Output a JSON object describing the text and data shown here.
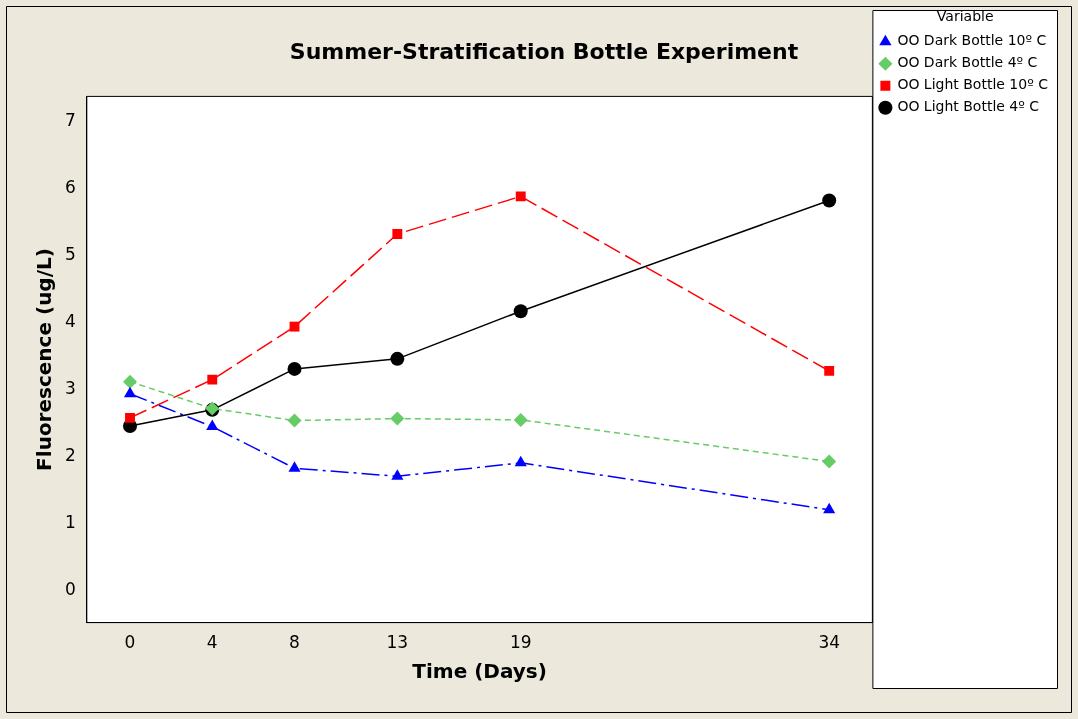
{
  "chart_data": {
    "type": "line",
    "title": "Summer-Stratification Bottle Experiment",
    "xlabel": "Time (Days)",
    "ylabel": "Fluorescence (ug/L)",
    "legend_title": "Variable",
    "legend": "top right",
    "grid": false,
    "x": [
      0,
      4,
      8,
      13,
      19,
      34
    ],
    "xlim": [
      -2.1,
      36.1
    ],
    "xticks": [
      0,
      4,
      8,
      13,
      19,
      34
    ],
    "ylim": [
      -0.47,
      7.37
    ],
    "yticks": [
      0,
      1,
      2,
      3,
      4,
      5,
      6,
      7
    ],
    "series": [
      {
        "name": "OO Light Bottle 4º C",
        "color": "#000000",
        "marker": "circle",
        "line_style": "solid",
        "values": [
          2.46,
          2.7,
          3.31,
          3.46,
          4.17,
          5.82
        ]
      },
      {
        "name": "OO Light Bottle 10º C",
        "color": "#ff0000",
        "marker": "square",
        "line_style": "dashed",
        "values": [
          2.58,
          3.15,
          3.94,
          5.32,
          5.88,
          3.28
        ]
      },
      {
        "name": "OO Dark Bottle 4º C",
        "color": "#66cc66",
        "marker": "diamond",
        "line_style": "dotted",
        "values": [
          3.12,
          2.72,
          2.54,
          2.57,
          2.55,
          1.93
        ]
      },
      {
        "name": "OO Dark Bottle 10º C",
        "color": "#0000ff",
        "marker": "triangle",
        "line_style": "dashdot",
        "values": [
          2.94,
          2.45,
          1.83,
          1.71,
          1.91,
          1.21
        ]
      }
    ]
  }
}
